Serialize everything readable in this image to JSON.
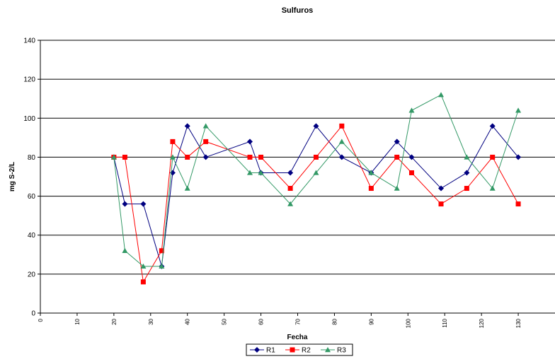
{
  "chart_data": {
    "type": "line",
    "title": "Sulfuros",
    "xlabel": "Fecha",
    "ylabel": "mg S-2/L",
    "xlim": [
      0,
      140
    ],
    "ylim": [
      0,
      140
    ],
    "x_ticks": [
      0,
      10,
      20,
      30,
      40,
      50,
      60,
      70,
      80,
      90,
      100,
      110,
      120,
      130
    ],
    "y_ticks": [
      0,
      20,
      40,
      60,
      80,
      100,
      120,
      140
    ],
    "grid": "horizontal",
    "legend_position": "bottom",
    "series": [
      {
        "name": "R1",
        "color": "#000080",
        "marker": "diamond",
        "x": [
          20,
          23,
          28,
          33,
          36,
          40,
          45,
          57,
          60,
          68,
          75,
          82,
          90,
          97,
          101,
          109,
          116,
          123,
          130
        ],
        "y": [
          80,
          56,
          56,
          24,
          72,
          96,
          80,
          88,
          72,
          72,
          96,
          80,
          72,
          88,
          80,
          64,
          72,
          96,
          80
        ]
      },
      {
        "name": "R2",
        "color": "#ff0000",
        "marker": "square",
        "x": [
          20,
          23,
          28,
          33,
          36,
          40,
          45,
          57,
          60,
          68,
          75,
          82,
          90,
          97,
          101,
          109,
          116,
          123,
          130
        ],
        "y": [
          80,
          80,
          16,
          32,
          88,
          80,
          88,
          80,
          80,
          64,
          80,
          96,
          64,
          80,
          72,
          56,
          64,
          80,
          56
        ]
      },
      {
        "name": "R3",
        "color": "#339966",
        "marker": "triangle",
        "x": [
          20,
          23,
          28,
          33,
          36,
          40,
          45,
          57,
          60,
          68,
          75,
          82,
          90,
          97,
          101,
          109,
          116,
          123,
          130
        ],
        "y": [
          80,
          32,
          24,
          24,
          80,
          64,
          96,
          72,
          72,
          56,
          72,
          88,
          72,
          64,
          104,
          112,
          80,
          64,
          104
        ]
      }
    ]
  }
}
